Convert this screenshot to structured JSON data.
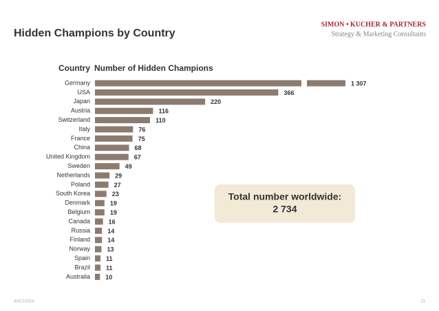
{
  "chart_data": {
    "type": "bar",
    "orientation": "horizontal",
    "title": "Hidden Champions by Country",
    "category_header": "Country",
    "value_header": "Number of Hidden Champions",
    "categories": [
      "Germany",
      "USA",
      "Japan",
      "Austria",
      "Switzerland",
      "Italy",
      "France",
      "China",
      "United Kingdom",
      "Sweden",
      "Netherlands",
      "Poland",
      "South Korea",
      "Denmark",
      "Belgium",
      "Canada",
      "Russia",
      "Finland",
      "Norway",
      "Spain",
      "Brazil",
      "Australia"
    ],
    "values": [
      1307,
      366,
      220,
      116,
      110,
      76,
      75,
      68,
      67,
      49,
      29,
      27,
      23,
      19,
      19,
      16,
      14,
      14,
      13,
      11,
      11,
      10
    ],
    "value_labels": [
      "1 307",
      "366",
      "220",
      "116",
      "110",
      "76",
      "75",
      "68",
      "67",
      "49",
      "29",
      "27",
      "23",
      "19",
      "19",
      "16",
      "14",
      "14",
      "13",
      "11",
      "11",
      "10"
    ],
    "color": "#8c7b6f",
    "xlim": [
      0,
      500
    ],
    "axis_break": true,
    "annotation": {
      "title": "Total number worldwide:",
      "value": "2 734"
    }
  },
  "header": {
    "company": "SIMON • KUCHER & PARTNERS",
    "tagline": "Strategy & Marketing Consultants"
  },
  "footer": {
    "code": "4HC1X024",
    "page": "21"
  }
}
